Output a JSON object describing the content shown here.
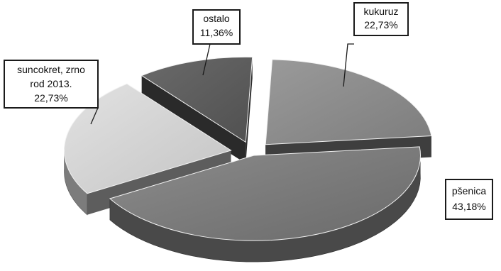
{
  "chart_data": {
    "type": "pie",
    "style": "3d-exploded",
    "slices": [
      {
        "category": "kukuruz",
        "value": 22.73,
        "label": "22,73%",
        "color": "#8a8a8a"
      },
      {
        "category": "pšenica",
        "value": 43.18,
        "label": "43,18%",
        "color": "#7a7a7a"
      },
      {
        "category": "suncokret, zrno rod 2013.",
        "label_lines": [
          "suncokret, zrno",
          "rod 2013."
        ],
        "value": 22.73,
        "label": "22,73%",
        "color": "#cfcfcf"
      },
      {
        "category": "ostalo",
        "value": 11.36,
        "label": "11,36%",
        "color": "#5e5e5e"
      }
    ],
    "legend": "none",
    "data_labels": "callouts"
  }
}
